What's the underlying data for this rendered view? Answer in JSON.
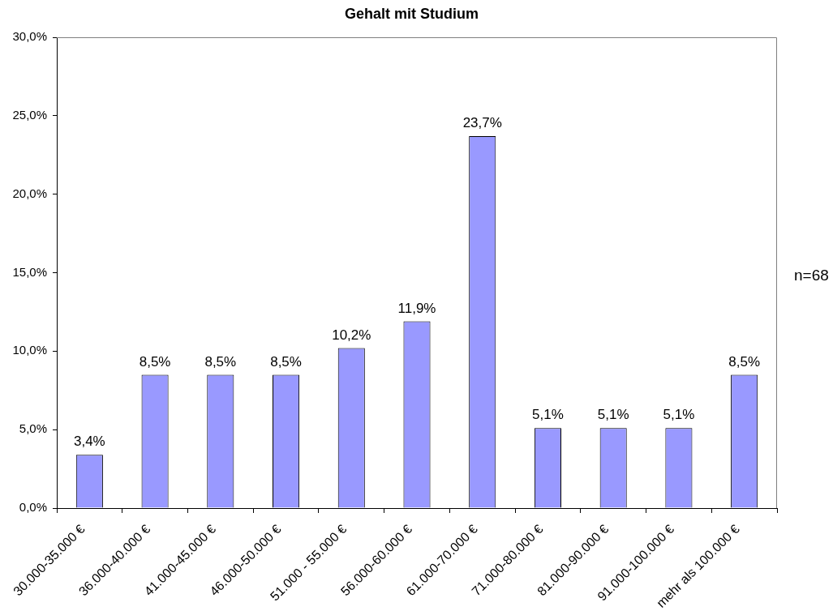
{
  "chart_data": {
    "type": "bar",
    "title": "Gehalt mit Studium",
    "categories": [
      "30.000-35.000 €",
      "36.000-40.000 €",
      "41.000-45.000 €",
      "46.000-50.000 €",
      "51.000 - 55.000 €",
      "56.000-60.000 €",
      "61.000-70.000 €",
      "71.000-80.000 €",
      "81.000-90.000 €",
      "91.000-100.000 €",
      "mehr als 100.000 €"
    ],
    "values": [
      3.4,
      8.5,
      8.5,
      8.5,
      10.2,
      11.9,
      23.7,
      5.1,
      5.1,
      5.1,
      8.5
    ],
    "value_labels": [
      "3,4%",
      "8,5%",
      "8,5%",
      "8,5%",
      "10,2%",
      "11,9%",
      "23,7%",
      "5,1%",
      "5,1%",
      "5,1%",
      "8,5%"
    ],
    "color": "#9999ff",
    "ylim": [
      0,
      30
    ],
    "yticks": [
      {
        "value": 0,
        "label": "0,0%"
      },
      {
        "value": 5,
        "label": "5,0%"
      },
      {
        "value": 10,
        "label": "10,0%"
      },
      {
        "value": 15,
        "label": "15,0%"
      },
      {
        "value": 20,
        "label": "20,0%"
      },
      {
        "value": 25,
        "label": "25,0%"
      },
      {
        "value": 30,
        "label": "30,0%"
      }
    ],
    "grid": false,
    "legend": false,
    "annotations": [
      "n=68"
    ]
  }
}
